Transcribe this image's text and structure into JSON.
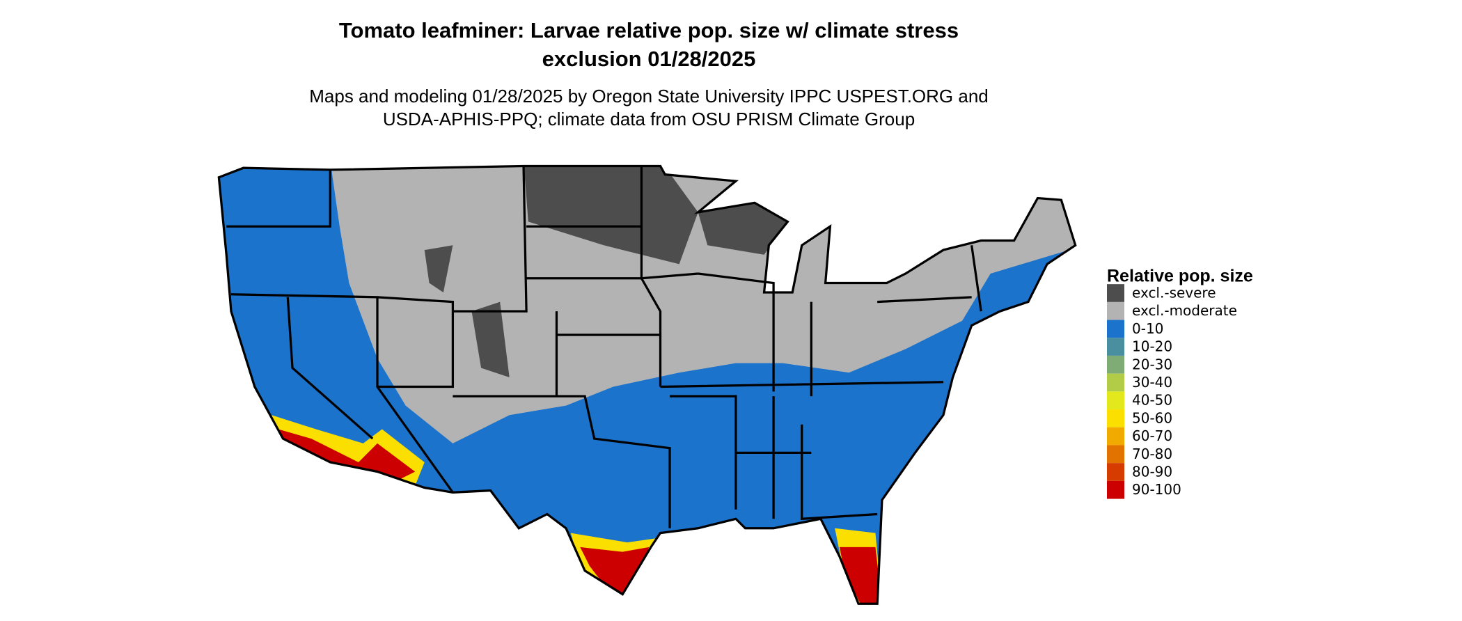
{
  "title": [
    "Tomato leafminer: Larvae relative pop. size w/ climate stress",
    "exclusion 01/28/2025"
  ],
  "subtitle": [
    "Maps and modeling 01/28/2025 by Oregon State University IPPC USPEST.ORG and",
    "USDA-APHIS-PPQ; climate data from OSU PRISM Climate Group"
  ],
  "legend": {
    "title": "Relative pop. size",
    "items": [
      {
        "label": "excl.-severe",
        "color": "#4d4d4d"
      },
      {
        "label": "excl.-moderate",
        "color": "#b3b3b3"
      },
      {
        "label": "0-10",
        "color": "#1c73cc"
      },
      {
        "label": "10-20",
        "color": "#4a8fa0"
      },
      {
        "label": "20-30",
        "color": "#7fab74"
      },
      {
        "label": "30-40",
        "color": "#b2cc48"
      },
      {
        "label": "40-50",
        "color": "#e3e81c"
      },
      {
        "label": "50-60",
        "color": "#fadf00"
      },
      {
        "label": "60-70",
        "color": "#f0aa00"
      },
      {
        "label": "70-80",
        "color": "#e37300"
      },
      {
        "label": "80-90",
        "color": "#d63c00"
      },
      {
        "label": "90-100",
        "color": "#cc0000"
      }
    ]
  }
}
